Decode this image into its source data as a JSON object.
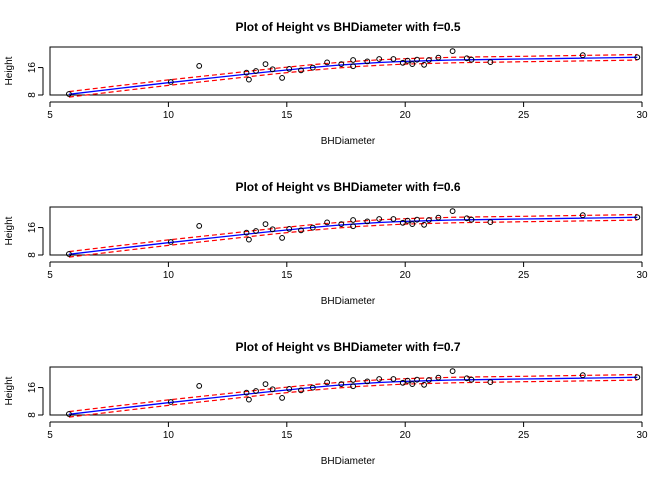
{
  "chart_data": [
    {
      "type": "scatter",
      "title": "Plot of Height vs BHDiameter with f=0.5",
      "xlabel": "BHDiameter",
      "ylabel": "Height",
      "xlim": [
        5,
        30
      ],
      "ylim": [
        8,
        22
      ],
      "xticks": [
        5,
        10,
        15,
        20,
        25,
        30
      ],
      "yticks": [
        8,
        16
      ],
      "grid": false,
      "smoother_f": 0.5
    },
    {
      "type": "scatter",
      "title": "Plot of Height vs BHDiameter with f=0.6",
      "xlabel": "BHDiameter",
      "ylabel": "Height",
      "xlim": [
        5,
        30
      ],
      "ylim": [
        8,
        22
      ],
      "xticks": [
        5,
        10,
        15,
        20,
        25,
        30
      ],
      "yticks": [
        8,
        16
      ],
      "grid": false,
      "smoother_f": 0.6
    },
    {
      "type": "scatter",
      "title": "Plot of Height vs BHDiameter with f=0.7",
      "xlabel": "BHDiameter",
      "ylabel": "Height",
      "xlim": [
        5,
        30
      ],
      "ylim": [
        8,
        22
      ],
      "xticks": [
        5,
        10,
        15,
        20,
        25,
        30
      ],
      "yticks": [
        8,
        16
      ],
      "grid": false,
      "smoother_f": 0.7
    }
  ],
  "points": {
    "x": [
      5.8,
      10.1,
      11.3,
      13.3,
      13.4,
      13.7,
      14.1,
      14.4,
      14.8,
      15.1,
      15.6,
      16.1,
      16.7,
      17.3,
      17.8,
      17.8,
      18.4,
      18.9,
      19.5,
      19.9,
      20.1,
      20.3,
      20.5,
      20.8,
      21.0,
      21.4,
      22.0,
      22.6,
      22.8,
      23.6,
      27.5,
      29.8
    ],
    "y": [
      8.3,
      11.8,
      16.5,
      14.5,
      12.5,
      15.0,
      17.0,
      15.5,
      13.0,
      15.6,
      15.2,
      16.0,
      17.5,
      17.0,
      16.4,
      18.2,
      17.8,
      18.5,
      18.5,
      17.4,
      18.0,
      17.0,
      18.3,
      16.8,
      18.2,
      18.9,
      20.8,
      18.7,
      18.3,
      17.6,
      19.6,
      19.0
    ]
  },
  "smoother": {
    "x": [
      5.8,
      8,
      10,
      12,
      14,
      15,
      16,
      17,
      18,
      19,
      20,
      21,
      22,
      23,
      24,
      25,
      26,
      27,
      28,
      29,
      29.8
    ],
    "fit": [
      8.2,
      10.0,
      11.6,
      13.1,
      14.6,
      15.3,
      16.0,
      16.6,
      17.1,
      17.5,
      17.8,
      18.0,
      18.2,
      18.3,
      18.4,
      18.5,
      18.6,
      18.7,
      18.8,
      18.9,
      19.0
    ],
    "band": 0.8
  },
  "colors": {
    "points": "#000000",
    "fit": "#0000ff",
    "band": "#ff0000",
    "axis": "#000000",
    "background": "#ffffff"
  }
}
